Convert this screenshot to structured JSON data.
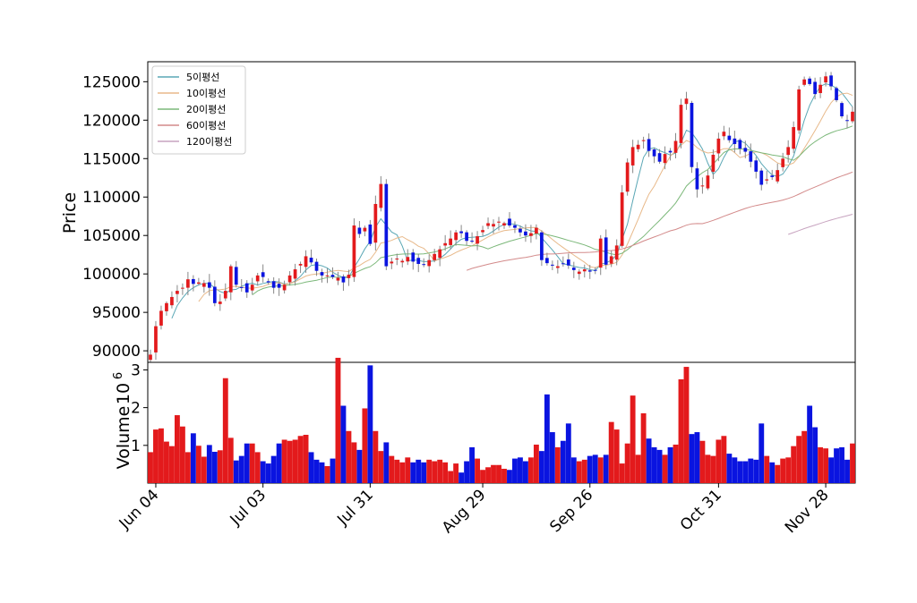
{
  "chart_data": {
    "type": "candlestick",
    "price_axis": {
      "label": "Price",
      "ylim": [
        88500,
        127600
      ],
      "ticks": [
        90000,
        95000,
        100000,
        105000,
        110000,
        115000,
        120000,
        125000
      ],
      "tick_labels": [
        "90000",
        "95000",
        "100000",
        "105000",
        "110000",
        "115000",
        "120000",
        "125000"
      ]
    },
    "volume_axis": {
      "label": "Volume",
      "scale_text": "10",
      "scale_exp": "6",
      "ylim": [
        0,
        3.2
      ],
      "ticks": [
        1,
        2,
        3
      ],
      "tick_labels": [
        "1",
        "2",
        "3"
      ]
    },
    "x_axis": {
      "tick_labels": [
        "Jun 04",
        "Jul 03",
        "Jul 31",
        "Aug 29",
        "Sep 26",
        "Oct 31",
        "Nov 28"
      ],
      "tick_index": [
        1,
        21,
        41,
        62,
        82,
        106,
        126
      ]
    },
    "legend": {
      "placement": "top-left",
      "entries": [
        {
          "label": "5이평선",
          "color": "#5aa7b5"
        },
        {
          "label": "10이평선",
          "color": "#e8b98a"
        },
        {
          "label": "20이평선",
          "color": "#7cb87a"
        },
        {
          "label": "60이평선",
          "color": "#d38a8a"
        },
        {
          "label": "120이평선",
          "color": "#c7a3bf"
        }
      ]
    },
    "colors": {
      "up": "#e31a1c",
      "down": "#0a14e0",
      "frame": "#000000"
    },
    "close": [
      89500,
      93200,
      95200,
      96200,
      97000,
      97800,
      98200,
      99300,
      98700,
      98900,
      98800,
      98200,
      96200,
      96400,
      97800,
      101000,
      98600,
      98200,
      97600,
      98600,
      99800,
      99600,
      98900,
      98200,
      98200,
      98600,
      99800,
      100600,
      101300,
      102300,
      101500,
      100400,
      99800,
      99800,
      99600,
      99500,
      98900,
      99900,
      106300,
      105200,
      106000,
      103900,
      109100,
      111700,
      101000,
      101600,
      102000,
      101700,
      102200,
      101600,
      101300,
      101200,
      101800,
      102600,
      103200,
      104000,
      104600,
      105400,
      105300,
      104300,
      104200,
      104900,
      105700,
      106600,
      106500,
      106800,
      106600,
      106300,
      106000,
      105400,
      105000,
      105300,
      106000,
      101800,
      101400,
      101100,
      101000,
      101300,
      101100,
      100500,
      100300,
      100600,
      100300,
      100500,
      104600,
      101200,
      102300,
      103700,
      110600,
      114500,
      116500,
      116800,
      117400,
      116000,
      115300,
      114600,
      115600,
      115800,
      117300,
      122000,
      122800,
      113900,
      111000,
      111500,
      112800,
      115500,
      117600,
      118500,
      117400,
      116900,
      116300,
      115900,
      114600,
      113300,
      111600,
      112300,
      112600,
      113500,
      115000,
      116500,
      119100,
      124000,
      125300,
      124700,
      123400,
      124600,
      125700,
      124400,
      122600,
      120500,
      120000,
      121100
    ],
    "volume": [
      0.82,
      1.42,
      1.45,
      1.1,
      0.98,
      1.8,
      1.5,
      0.82,
      1.32,
      0.99,
      0.7,
      1.01,
      0.83,
      0.87,
      2.78,
      1.2,
      0.6,
      0.72,
      1.05,
      1.05,
      0.82,
      0.58,
      0.52,
      0.72,
      1.05,
      1.15,
      1.12,
      1.15,
      1.25,
      1.28,
      0.82,
      0.62,
      0.55,
      0.45,
      0.65,
      3.32,
      2.05,
      1.38,
      1.08,
      0.88,
      1.98,
      3.12,
      1.38,
      0.85,
      1.08,
      0.72,
      0.62,
      0.55,
      0.68,
      0.55,
      0.62,
      0.55,
      0.62,
      0.58,
      0.62,
      0.55,
      0.32,
      0.52,
      0.28,
      0.58,
      0.95,
      0.65,
      0.35,
      0.42,
      0.48,
      0.48,
      0.38,
      0.35,
      0.65,
      0.68,
      0.58,
      0.68,
      1.02,
      0.85,
      2.35,
      1.35,
      0.95,
      1.12,
      1.58,
      0.68,
      0.58,
      0.62,
      0.72,
      0.75,
      0.68,
      0.75,
      1.62,
      1.42,
      0.52,
      1.05,
      2.32,
      0.75,
      1.85,
      1.18,
      0.95,
      0.88,
      0.75,
      0.95,
      1.02,
      2.75,
      3.08,
      1.3,
      1.35,
      1.12,
      0.75,
      0.72,
      1.15,
      1.25,
      0.78,
      0.68,
      0.58,
      0.58,
      0.65,
      0.62,
      1.58,
      0.72,
      0.55,
      0.48,
      0.65,
      0.68,
      0.98,
      1.25,
      1.38,
      2.05,
      1.48,
      0.95,
      0.92,
      0.68,
      0.92,
      0.95,
      0.62,
      1.05
    ],
    "series_notes": "Each trading day: candle (open/close/high/low) + volume bar; moving averages computed from close."
  }
}
